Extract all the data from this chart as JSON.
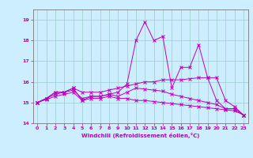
{
  "xlabel": "Windchill (Refroidissement éolien,°C)",
  "bg_color": "#cceeff",
  "line_color": "#bb00bb",
  "xlim": [
    -0.5,
    23.5
  ],
  "ylim": [
    14.0,
    19.5
  ],
  "yticks": [
    14,
    15,
    16,
    17,
    18,
    19
  ],
  "xticks": [
    0,
    1,
    2,
    3,
    4,
    5,
    6,
    7,
    8,
    9,
    10,
    11,
    12,
    13,
    14,
    15,
    16,
    17,
    18,
    19,
    20,
    21,
    22,
    23
  ],
  "series": [
    [
      15.0,
      15.2,
      15.5,
      15.5,
      15.7,
      15.1,
      15.3,
      15.3,
      15.4,
      15.5,
      15.9,
      18.0,
      18.9,
      18.0,
      18.2,
      15.7,
      16.7,
      16.7,
      17.8,
      16.2,
      15.1,
      14.7,
      14.7,
      14.4
    ],
    [
      15.0,
      15.2,
      15.5,
      15.5,
      15.7,
      15.5,
      15.5,
      15.5,
      15.6,
      15.7,
      15.8,
      15.9,
      16.0,
      16.0,
      16.1,
      16.1,
      16.1,
      16.15,
      16.2,
      16.2,
      16.2,
      15.1,
      14.8,
      14.4
    ],
    [
      15.0,
      15.2,
      15.4,
      15.5,
      15.6,
      15.2,
      15.3,
      15.3,
      15.4,
      15.3,
      15.5,
      15.7,
      15.65,
      15.6,
      15.55,
      15.4,
      15.3,
      15.2,
      15.1,
      15.0,
      14.9,
      14.7,
      14.7,
      14.4
    ],
    [
      15.0,
      15.15,
      15.3,
      15.4,
      15.5,
      15.1,
      15.2,
      15.2,
      15.3,
      15.2,
      15.2,
      15.1,
      15.1,
      15.05,
      15.0,
      14.95,
      14.9,
      14.85,
      14.8,
      14.75,
      14.7,
      14.65,
      14.6,
      14.4
    ]
  ]
}
